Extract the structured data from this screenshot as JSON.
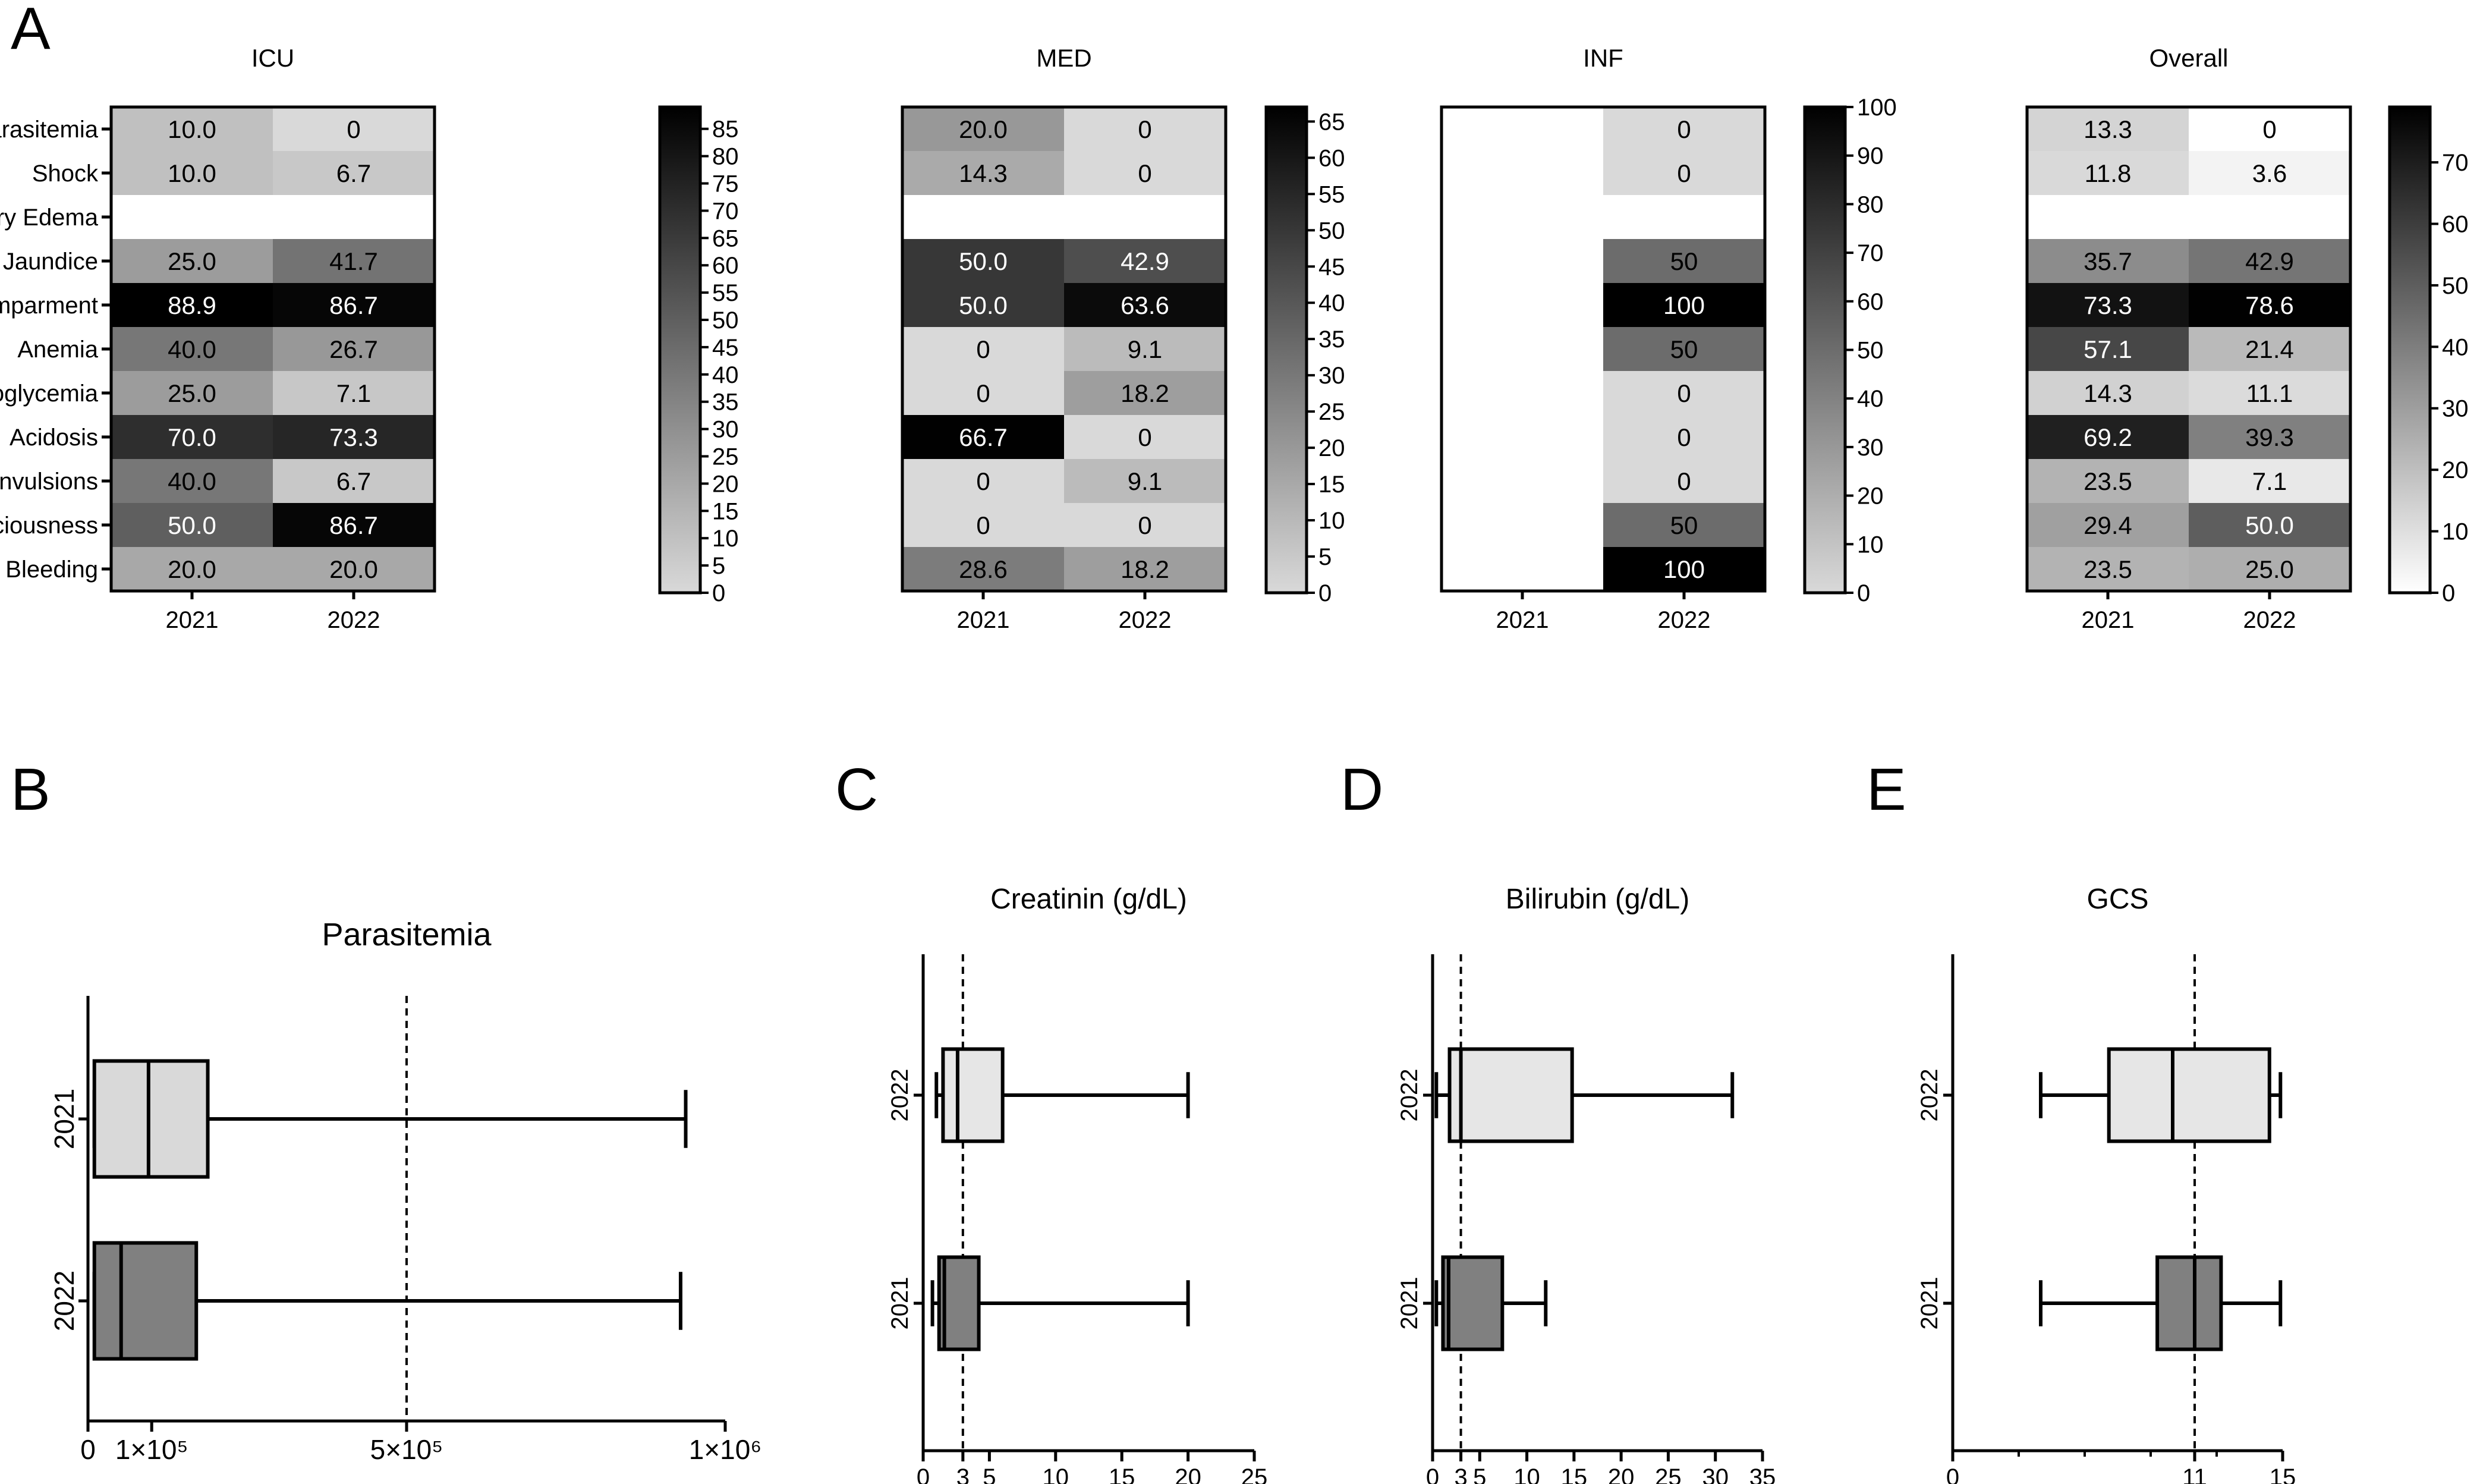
{
  "panel_labels": [
    "A",
    "B",
    "C",
    "D",
    "E"
  ],
  "colors": {
    "axis": "#000000",
    "box_2021_B": "#d9d9d9",
    "box_2022_B": "#808080",
    "box_light": "#e6e6e6",
    "box_dark": "#808080"
  },
  "chart_data": [
    {
      "type": "heatmap",
      "title": "ICU",
      "rows": [
        "Hyperparasitemia",
        "Shock",
        "Pulmonary Edema",
        "Jaundice",
        "Renal Imparment",
        "Anemia",
        "Hypoglycemia",
        "Acidosis",
        "Multiple Convulsions",
        "Impaired Consciousness",
        "Active Bleeding"
      ],
      "columns": [
        "2021",
        "2022"
      ],
      "values": [
        [
          "10.0",
          "0"
        ],
        [
          "10.0",
          "6.7"
        ],
        [
          null,
          null
        ],
        [
          "25.0",
          "41.7"
        ],
        [
          "88.9",
          "86.7"
        ],
        [
          "40.0",
          "26.7"
        ],
        [
          "25.0",
          "7.1"
        ],
        [
          "70.0",
          "73.3"
        ],
        [
          "40.0",
          "6.7"
        ],
        [
          "50.0",
          "86.7"
        ],
        [
          "20.0",
          "20.0"
        ]
      ],
      "colorbar": {
        "min": 0,
        "max": 89,
        "ticks": [
          "0",
          "5",
          "10",
          "15",
          "20",
          "25",
          "30",
          "35",
          "40",
          "45",
          "50",
          "55",
          "60",
          "65",
          "70",
          "75",
          "80",
          "85"
        ],
        "low": 0.85,
        "high": 0.0
      }
    },
    {
      "type": "heatmap",
      "title": "MED",
      "rows": [
        "Hyperparasitemia",
        "Shock",
        "Pulmonary Edema",
        "Jaundice",
        "Renal Imparment",
        "Anemia",
        "Hypoglycemia",
        "Acidosis",
        "Multiple Convulsions",
        "Impaired Consciousness",
        "Active Bleeding"
      ],
      "columns": [
        "2021",
        "2022"
      ],
      "values": [
        [
          "20.0",
          "0"
        ],
        [
          "14.3",
          "0"
        ],
        [
          null,
          null
        ],
        [
          "50.0",
          "42.9"
        ],
        [
          "50.0",
          "63.6"
        ],
        [
          "0",
          "9.1"
        ],
        [
          "0",
          "18.2"
        ],
        [
          "66.7",
          "0"
        ],
        [
          "0",
          "9.1"
        ],
        [
          "0",
          "0"
        ],
        [
          "28.6",
          "18.2"
        ]
      ],
      "colorbar": {
        "min": 0,
        "max": 67,
        "ticks": [
          "0",
          "5",
          "10",
          "15",
          "20",
          "25",
          "30",
          "35",
          "40",
          "45",
          "50",
          "55",
          "60",
          "65"
        ],
        "low": 0.85,
        "high": 0.0
      }
    },
    {
      "type": "heatmap",
      "title": "INF",
      "rows": [
        "Hyperparasitemia",
        "Shock",
        "Pulmonary Edema",
        "Jaundice",
        "Renal Imparment",
        "Anemia",
        "Hypoglycemia",
        "Acidosis",
        "Multiple Convulsions",
        "Impaired Consciousness",
        "Active Bleeding"
      ],
      "columns": [
        "2021",
        "2022"
      ],
      "values": [
        [
          null,
          "0"
        ],
        [
          null,
          "0"
        ],
        [
          null,
          null
        ],
        [
          null,
          "50"
        ],
        [
          null,
          "100"
        ],
        [
          null,
          "50"
        ],
        [
          null,
          "0"
        ],
        [
          null,
          "0"
        ],
        [
          null,
          "0"
        ],
        [
          null,
          "50"
        ],
        [
          null,
          "100"
        ]
      ],
      "colorbar": {
        "min": 0,
        "max": 100,
        "ticks": [
          "0",
          "10",
          "20",
          "30",
          "40",
          "50",
          "60",
          "70",
          "80",
          "90",
          "100"
        ],
        "low": 0.85,
        "high": 0.0
      }
    },
    {
      "type": "heatmap",
      "title": "Overall",
      "rows": [
        "Hyperparasitemia",
        "Shock",
        "Pulmonary Edema",
        "Jaundice",
        "Renal Imparment",
        "Anemia",
        "Hypoglycemia",
        "Acidosis",
        "Multiple Convulsions",
        "Impaired Consciousness",
        "Active Bleeding"
      ],
      "columns": [
        "2021",
        "2022"
      ],
      "values": [
        [
          "13.3",
          "0"
        ],
        [
          "11.8",
          "3.6"
        ],
        [
          null,
          null
        ],
        [
          "35.7",
          "42.9"
        ],
        [
          "73.3",
          "78.6"
        ],
        [
          "57.1",
          "21.4"
        ],
        [
          "14.3",
          "11.1"
        ],
        [
          "69.2",
          "39.3"
        ],
        [
          "23.5",
          "7.1"
        ],
        [
          "29.4",
          "50.0"
        ],
        [
          "23.5",
          "25.0"
        ]
      ],
      "colorbar": {
        "min": 0,
        "max": 79,
        "ticks": [
          "0",
          "10",
          "20",
          "30",
          "40",
          "50",
          "60",
          "70"
        ],
        "low": 1.0,
        "high": 0.0
      }
    },
    {
      "type": "boxplot",
      "orientation": "horizontal",
      "title": "Parasitemia",
      "xlim": [
        0,
        1000000
      ],
      "xticks": [
        {
          "v": 0,
          "label": "0"
        },
        {
          "v": 100000,
          "label": "1×10⁵"
        },
        {
          "v": 500000,
          "label": "5×10⁵"
        },
        {
          "v": 1000000,
          "label": "1×10⁶"
        }
      ],
      "reference_line": 500000,
      "categories_top_to_bottom": [
        "2021",
        "2022"
      ],
      "boxes": [
        {
          "name": "2021",
          "min": 10000,
          "q1": 10000,
          "median": 95000,
          "q3": 188000,
          "max": 938000,
          "fill": "#d9d9d9"
        },
        {
          "name": "2022",
          "min": 10000,
          "q1": 10000,
          "median": 52000,
          "q3": 170000,
          "max": 930000,
          "fill": "#808080"
        }
      ]
    },
    {
      "type": "boxplot",
      "orientation": "horizontal",
      "title": "Creatinin (g/dL)",
      "xlim": [
        0,
        25
      ],
      "xticks": [
        {
          "v": 0,
          "label": "0"
        },
        {
          "v": 3,
          "label": "3"
        },
        {
          "v": 5,
          "label": "5"
        },
        {
          "v": 10,
          "label": "10"
        },
        {
          "v": 15,
          "label": "15"
        },
        {
          "v": 20,
          "label": "20"
        },
        {
          "v": 25,
          "label": "25"
        }
      ],
      "reference_line": 3,
      "categories_top_to_bottom": [
        "2022",
        "2021"
      ],
      "boxes": [
        {
          "name": "2022",
          "min": 1.0,
          "q1": 1.5,
          "median": 2.6,
          "q3": 6.0,
          "max": 20.0,
          "fill": "#e6e6e6"
        },
        {
          "name": "2021",
          "min": 0.7,
          "q1": 1.2,
          "median": 1.6,
          "q3": 4.2,
          "max": 20.0,
          "fill": "#808080"
        }
      ]
    },
    {
      "type": "boxplot",
      "orientation": "horizontal",
      "title": "Bilirubin (g/dL)",
      "xlim": [
        0,
        35
      ],
      "xticks": [
        {
          "v": 0,
          "label": "0"
        },
        {
          "v": 3,
          "label": "3"
        },
        {
          "v": 5,
          "label": "5"
        },
        {
          "v": 10,
          "label": "10"
        },
        {
          "v": 15,
          "label": "15"
        },
        {
          "v": 20,
          "label": "20"
        },
        {
          "v": 25,
          "label": "25"
        },
        {
          "v": 30,
          "label": "30"
        },
        {
          "v": 35,
          "label": "35"
        }
      ],
      "reference_line": 3,
      "categories_top_to_bottom": [
        "2022",
        "2021"
      ],
      "boxes": [
        {
          "name": "2022",
          "min": 0.4,
          "q1": 1.8,
          "median": 3.0,
          "q3": 14.8,
          "max": 31.8,
          "fill": "#e6e6e6"
        },
        {
          "name": "2021",
          "min": 0.4,
          "q1": 1.1,
          "median": 1.7,
          "q3": 7.4,
          "max": 12.0,
          "fill": "#808080"
        }
      ]
    },
    {
      "type": "boxplot",
      "orientation": "horizontal",
      "title": "GCS",
      "xlim": [
        0,
        15
      ],
      "xticks": [
        {
          "v": 0,
          "label": "0"
        },
        {
          "v": 11,
          "label": "11"
        },
        {
          "v": 15,
          "label": "15"
        }
      ],
      "minor_xticks": [
        3,
        6,
        9,
        12
      ],
      "reference_line": 11,
      "categories_top_to_bottom": [
        "2022",
        "2021"
      ],
      "boxes": [
        {
          "name": "2022",
          "min": 4.0,
          "q1": 7.1,
          "median": 10.0,
          "q3": 14.4,
          "max": 14.9,
          "fill": "#e6e6e6"
        },
        {
          "name": "2021",
          "min": 4.0,
          "q1": 9.3,
          "median": 11.0,
          "q3": 12.2,
          "max": 14.9,
          "fill": "#808080"
        }
      ]
    }
  ]
}
